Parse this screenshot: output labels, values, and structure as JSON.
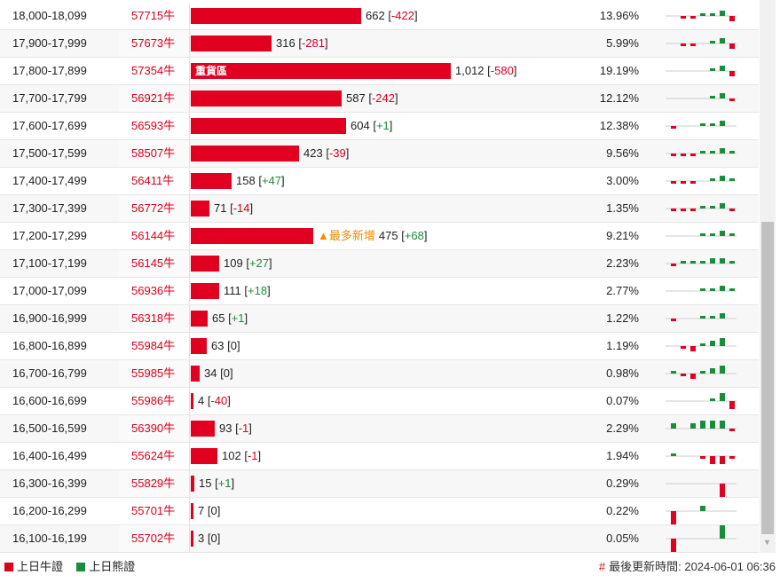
{
  "colors": {
    "bull": "#e10020",
    "bear": "#1a8c3c",
    "accent": "#f08a00"
  },
  "rows": [
    {
      "range": "18,000-18,099",
      "code": "57715牛",
      "count": 662,
      "count_text": "662",
      "change": "-422",
      "pct": "13.96%",
      "spark": [
        0,
        -1,
        -1,
        1,
        1,
        2,
        -2
      ]
    },
    {
      "range": "17,900-17,999",
      "code": "57673牛",
      "count": 316,
      "count_text": "316",
      "change": "-281",
      "pct": "5.99%",
      "spark": [
        0,
        -1,
        -1,
        0,
        1,
        2,
        -2
      ]
    },
    {
      "range": "17,800-17,899",
      "code": "57354牛",
      "count": 1012,
      "count_text": "1,012",
      "change": "-580",
      "pct": "19.19%",
      "label": "重貨區",
      "spark": [
        0,
        0,
        0,
        0,
        1,
        2,
        -2
      ]
    },
    {
      "range": "17,700-17,799",
      "code": "56921牛",
      "count": 587,
      "count_text": "587",
      "change": "-242",
      "pct": "12.12%",
      "spark": [
        0,
        0,
        0,
        0,
        1,
        2,
        -1
      ]
    },
    {
      "range": "17,600-17,699",
      "code": "56593牛",
      "count": 604,
      "count_text": "604",
      "change": "+1",
      "pct": "12.38%",
      "spark": [
        -1,
        0,
        0,
        1,
        1,
        2,
        0
      ]
    },
    {
      "range": "17,500-17,599",
      "code": "58507牛",
      "count": 423,
      "count_text": "423",
      "change": "-39",
      "pct": "9.56%",
      "spark": [
        -1,
        -1,
        -1,
        1,
        1,
        2,
        1
      ]
    },
    {
      "range": "17,400-17,499",
      "code": "56411牛",
      "count": 158,
      "count_text": "158",
      "change": "+47",
      "pct": "3.00%",
      "spark": [
        -1,
        -1,
        -1,
        0,
        1,
        2,
        1
      ]
    },
    {
      "range": "17,300-17,399",
      "code": "56772牛",
      "count": 71,
      "count_text": "71",
      "change": "-14",
      "pct": "1.35%",
      "spark": [
        -1,
        -1,
        -1,
        1,
        1,
        2,
        -1
      ]
    },
    {
      "range": "17,200-17,299",
      "code": "56144牛",
      "count": 475,
      "count_text": "475",
      "change": "+68",
      "pct": "9.21%",
      "tag": "▲最多新增",
      "spark": [
        0,
        0,
        0,
        1,
        1,
        2,
        1
      ]
    },
    {
      "range": "17,100-17,199",
      "code": "56145牛",
      "count": 109,
      "count_text": "109",
      "change": "+27",
      "pct": "2.23%",
      "spark": [
        -1,
        1,
        1,
        1,
        2,
        2,
        1
      ]
    },
    {
      "range": "17,000-17,099",
      "code": "56936牛",
      "count": 111,
      "count_text": "111",
      "change": "+18",
      "pct": "2.77%",
      "spark": [
        0,
        0,
        0,
        1,
        1,
        2,
        1
      ]
    },
    {
      "range": "16,900-16,999",
      "code": "56318牛",
      "count": 65,
      "count_text": "65",
      "change": "+1",
      "pct": "1.22%",
      "spark": [
        -1,
        0,
        0,
        1,
        1,
        2,
        0
      ]
    },
    {
      "range": "16,800-16,899",
      "code": "55984牛",
      "count": 63,
      "count_text": "63",
      "change": "0",
      "pct": "1.19%",
      "spark": [
        0,
        -1,
        -2,
        1,
        2,
        3,
        0
      ]
    },
    {
      "range": "16,700-16,799",
      "code": "55985牛",
      "count": 34,
      "count_text": "34",
      "change": "0",
      "pct": "0.98%",
      "spark": [
        1,
        -1,
        -2,
        1,
        2,
        3,
        0
      ]
    },
    {
      "range": "16,600-16,699",
      "code": "55986牛",
      "count": 4,
      "count_text": "4",
      "change": "-40",
      "pct": "0.07%",
      "spark": [
        0,
        0,
        0,
        0,
        1,
        3,
        -3
      ]
    },
    {
      "range": "16,500-16,599",
      "code": "56390牛",
      "count": 93,
      "count_text": "93",
      "change": "-1",
      "pct": "2.29%",
      "spark": [
        2,
        0,
        2,
        3,
        3,
        3,
        -1
      ]
    },
    {
      "range": "16,400-16,499",
      "code": "55624牛",
      "count": 102,
      "count_text": "102",
      "change": "-1",
      "pct": "1.94%",
      "spark": [
        1,
        0,
        0,
        -1,
        -3,
        -3,
        -1
      ]
    },
    {
      "range": "16,300-16,399",
      "code": "55829牛",
      "count": 15,
      "count_text": "15",
      "change": "+1",
      "pct": "0.29%",
      "spark": [
        0,
        0,
        0,
        0,
        0,
        -5,
        0
      ]
    },
    {
      "range": "16,200-16,299",
      "code": "55701牛",
      "count": 7,
      "count_text": "7",
      "change": "0",
      "pct": "0.22%",
      "spark": [
        -5,
        0,
        0,
        2,
        0,
        0,
        0
      ]
    },
    {
      "range": "16,100-16,199",
      "code": "55702牛",
      "count": 3,
      "count_text": "3",
      "change": "0",
      "pct": "0.05%",
      "spark": [
        -5,
        0,
        0,
        0,
        0,
        5,
        0
      ]
    }
  ],
  "legend": {
    "bull_label": "上日牛證",
    "bear_label": "上日熊證"
  },
  "footer": {
    "hash": "#",
    "updated": "最後更新時間: 2024-06-01 06:36"
  }
}
